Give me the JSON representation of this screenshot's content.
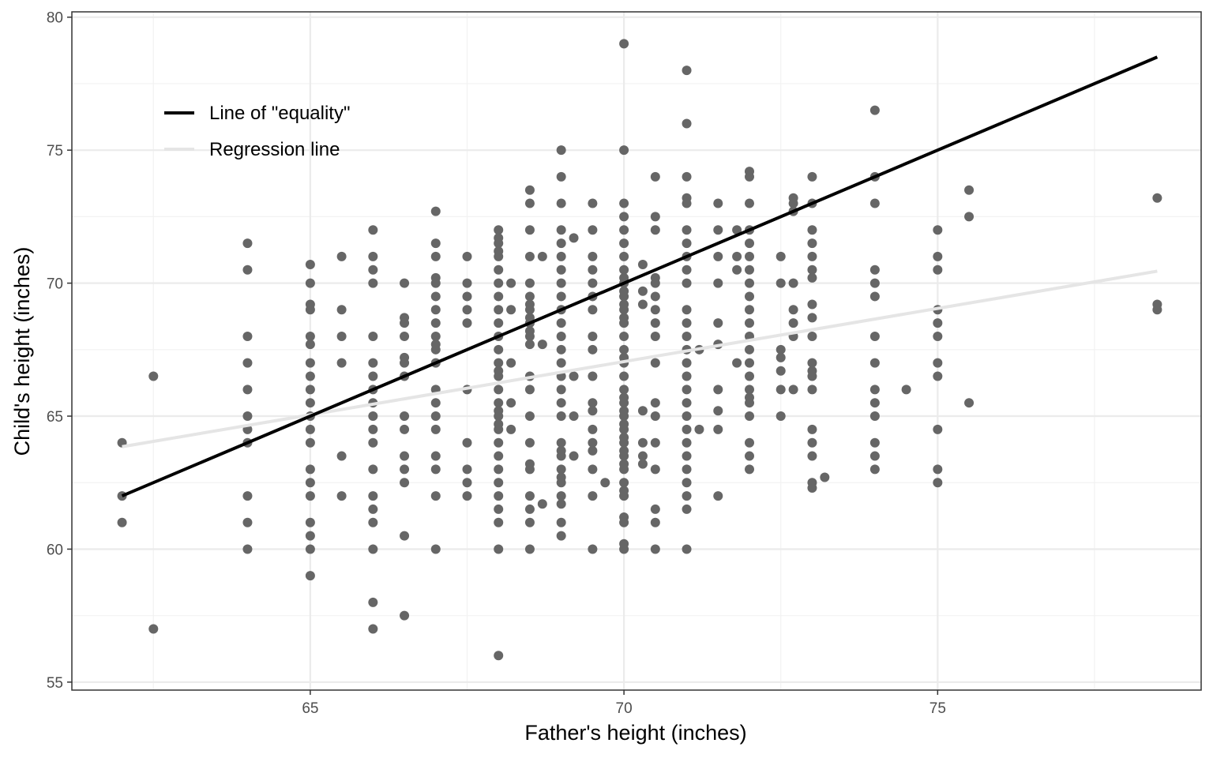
{
  "chart_data": {
    "type": "scatter",
    "title": "",
    "xlabel": "Father's height (inches)",
    "ylabel": "Child's height (inches)",
    "xlim": [
      61.2,
      79.2
    ],
    "ylim": [
      54.7,
      80.2
    ],
    "x_ticks": [
      65,
      70,
      75
    ],
    "x_tick_labels": [
      "65",
      "70",
      "75"
    ],
    "y_ticks": [
      55,
      60,
      65,
      70,
      75,
      80
    ],
    "y_tick_labels": [
      "55",
      "60",
      "65",
      "70",
      "75",
      "80"
    ],
    "grid": true,
    "legend_position": "top-left",
    "point_color": "#666666",
    "series": [
      {
        "name": "Line of \"equality\"",
        "type": "line",
        "color": "#000000",
        "points": [
          [
            62.0,
            62.0
          ],
          [
            78.5,
            78.5
          ]
        ]
      },
      {
        "name": "Regression line",
        "type": "line",
        "color": "#e5e5e5",
        "points": [
          [
            62.0,
            63.85
          ],
          [
            78.5,
            70.45
          ]
        ]
      }
    ],
    "points": [
      [
        62,
        64
      ],
      [
        62,
        62
      ],
      [
        62,
        61
      ],
      [
        62.5,
        66.5
      ],
      [
        62.5,
        57
      ],
      [
        64,
        71.5
      ],
      [
        64,
        70.5
      ],
      [
        64,
        68
      ],
      [
        64,
        67
      ],
      [
        64,
        66
      ],
      [
        64,
        65
      ],
      [
        64,
        64.5
      ],
      [
        64,
        64
      ],
      [
        64,
        62
      ],
      [
        64,
        61
      ],
      [
        64,
        60
      ],
      [
        65,
        70.7
      ],
      [
        65,
        70
      ],
      [
        65,
        69.2
      ],
      [
        65,
        69
      ],
      [
        65,
        68
      ],
      [
        65,
        67.7
      ],
      [
        65,
        67
      ],
      [
        65,
        66.5
      ],
      [
        65,
        66
      ],
      [
        65,
        65.5
      ],
      [
        65,
        65
      ],
      [
        65,
        64.5
      ],
      [
        65,
        64
      ],
      [
        65,
        63
      ],
      [
        65,
        62.5
      ],
      [
        65,
        62
      ],
      [
        65,
        61
      ],
      [
        65,
        60.5
      ],
      [
        65,
        60
      ],
      [
        65,
        59
      ],
      [
        65.5,
        71
      ],
      [
        65.5,
        69
      ],
      [
        65.5,
        68
      ],
      [
        65.5,
        67
      ],
      [
        65.5,
        63.5
      ],
      [
        65.5,
        62
      ],
      [
        66,
        72
      ],
      [
        66,
        71
      ],
      [
        66,
        70.5
      ],
      [
        66,
        70
      ],
      [
        66,
        68
      ],
      [
        66,
        67
      ],
      [
        66,
        66.5
      ],
      [
        66,
        66
      ],
      [
        66,
        65.5
      ],
      [
        66,
        65
      ],
      [
        66,
        64.5
      ],
      [
        66,
        64
      ],
      [
        66,
        63
      ],
      [
        66,
        62
      ],
      [
        66,
        61.5
      ],
      [
        66,
        61
      ],
      [
        66,
        60
      ],
      [
        66,
        58
      ],
      [
        66,
        57
      ],
      [
        66.5,
        70
      ],
      [
        66.5,
        68.7
      ],
      [
        66.5,
        68.5
      ],
      [
        66.5,
        68
      ],
      [
        66.5,
        67.2
      ],
      [
        66.5,
        67
      ],
      [
        66.5,
        66.5
      ],
      [
        66.5,
        65
      ],
      [
        66.5,
        64.5
      ],
      [
        66.5,
        63.5
      ],
      [
        66.5,
        63
      ],
      [
        66.5,
        62.5
      ],
      [
        66.5,
        60.5
      ],
      [
        66.5,
        57.5
      ],
      [
        67,
        72.7
      ],
      [
        67,
        71.5
      ],
      [
        67,
        71
      ],
      [
        67,
        70.2
      ],
      [
        67,
        70
      ],
      [
        67,
        69.5
      ],
      [
        67,
        69
      ],
      [
        67,
        68.5
      ],
      [
        67,
        68
      ],
      [
        67,
        67.7
      ],
      [
        67,
        67.5
      ],
      [
        67,
        67
      ],
      [
        67,
        66
      ],
      [
        67,
        65.5
      ],
      [
        67,
        65
      ],
      [
        67,
        64.5
      ],
      [
        67,
        63.5
      ],
      [
        67,
        63
      ],
      [
        67,
        62
      ],
      [
        67,
        60
      ],
      [
        67.5,
        71
      ],
      [
        67.5,
        70
      ],
      [
        67.5,
        69.5
      ],
      [
        67.5,
        69
      ],
      [
        67.5,
        68.5
      ],
      [
        67.5,
        66
      ],
      [
        67.5,
        64
      ],
      [
        67.5,
        63
      ],
      [
        67.5,
        62.5
      ],
      [
        67.5,
        62
      ],
      [
        68,
        72
      ],
      [
        68,
        71.7
      ],
      [
        68,
        71.5
      ],
      [
        68,
        71.2
      ],
      [
        68,
        71
      ],
      [
        68,
        70.5
      ],
      [
        68,
        70
      ],
      [
        68,
        69.5
      ],
      [
        68,
        69
      ],
      [
        68,
        68.5
      ],
      [
        68,
        68
      ],
      [
        68,
        67.5
      ],
      [
        68,
        67
      ],
      [
        68,
        66.7
      ],
      [
        68,
        66.5
      ],
      [
        68,
        66
      ],
      [
        68,
        65.5
      ],
      [
        68,
        65.2
      ],
      [
        68,
        65
      ],
      [
        68,
        64.7
      ],
      [
        68,
        64.5
      ],
      [
        68,
        64
      ],
      [
        68,
        63.5
      ],
      [
        68,
        63
      ],
      [
        68,
        62.5
      ],
      [
        68,
        62
      ],
      [
        68,
        61.5
      ],
      [
        68,
        61
      ],
      [
        68,
        60
      ],
      [
        68,
        56
      ],
      [
        68.2,
        70
      ],
      [
        68.2,
        69
      ],
      [
        68.2,
        67
      ],
      [
        68.2,
        65.5
      ],
      [
        68.2,
        64.5
      ],
      [
        68.5,
        73.5
      ],
      [
        68.5,
        73
      ],
      [
        68.5,
        72
      ],
      [
        68.5,
        71
      ],
      [
        68.5,
        70
      ],
      [
        68.5,
        69.5
      ],
      [
        68.5,
        69.2
      ],
      [
        68.5,
        69
      ],
      [
        68.5,
        68.7
      ],
      [
        68.5,
        68.5
      ],
      [
        68.5,
        68.2
      ],
      [
        68.5,
        68
      ],
      [
        68.5,
        67.7
      ],
      [
        68.5,
        66.5
      ],
      [
        68.5,
        66
      ],
      [
        68.5,
        65
      ],
      [
        68.5,
        64
      ],
      [
        68.5,
        63.2
      ],
      [
        68.5,
        63
      ],
      [
        68.5,
        62
      ],
      [
        68.5,
        61.5
      ],
      [
        68.5,
        61
      ],
      [
        68.5,
        60
      ],
      [
        68.7,
        71
      ],
      [
        68.7,
        67.7
      ],
      [
        68.7,
        61.7
      ],
      [
        69,
        75
      ],
      [
        69,
        74
      ],
      [
        69,
        73
      ],
      [
        69,
        72
      ],
      [
        69,
        71.5
      ],
      [
        69,
        71
      ],
      [
        69,
        70.5
      ],
      [
        69,
        70
      ],
      [
        69,
        69.5
      ],
      [
        69,
        69
      ],
      [
        69,
        68.5
      ],
      [
        69,
        68
      ],
      [
        69,
        67.5
      ],
      [
        69,
        67
      ],
      [
        69,
        66.5
      ],
      [
        69,
        66
      ],
      [
        69,
        65.5
      ],
      [
        69,
        65
      ],
      [
        69,
        64
      ],
      [
        69,
        63.7
      ],
      [
        69,
        63.5
      ],
      [
        69,
        63
      ],
      [
        69,
        62.7
      ],
      [
        69,
        62.5
      ],
      [
        69,
        62
      ],
      [
        69,
        61.7
      ],
      [
        69,
        61
      ],
      [
        69,
        60.5
      ],
      [
        69.2,
        71.7
      ],
      [
        69.2,
        66.5
      ],
      [
        69.2,
        65
      ],
      [
        69.2,
        63.5
      ],
      [
        69.5,
        73
      ],
      [
        69.5,
        72
      ],
      [
        69.5,
        71
      ],
      [
        69.5,
        70.5
      ],
      [
        69.5,
        70
      ],
      [
        69.5,
        69.5
      ],
      [
        69.5,
        69
      ],
      [
        69.5,
        68
      ],
      [
        69.5,
        67.5
      ],
      [
        69.5,
        66.5
      ],
      [
        69.5,
        65.5
      ],
      [
        69.5,
        65.2
      ],
      [
        69.5,
        64.5
      ],
      [
        69.5,
        64
      ],
      [
        69.5,
        63.7
      ],
      [
        69.5,
        63
      ],
      [
        69.5,
        62
      ],
      [
        69.5,
        60
      ],
      [
        69.7,
        62.5
      ],
      [
        70,
        79
      ],
      [
        70,
        75
      ],
      [
        70,
        73
      ],
      [
        70,
        72.5
      ],
      [
        70,
        72
      ],
      [
        70,
        71.5
      ],
      [
        70,
        71
      ],
      [
        70,
        70.5
      ],
      [
        70,
        70.2
      ],
      [
        70,
        70
      ],
      [
        70,
        69.7
      ],
      [
        70,
        69.5
      ],
      [
        70,
        69.2
      ],
      [
        70,
        69
      ],
      [
        70,
        68.7
      ],
      [
        70,
        68.5
      ],
      [
        70,
        68
      ],
      [
        70,
        67.5
      ],
      [
        70,
        67.2
      ],
      [
        70,
        67
      ],
      [
        70,
        66.5
      ],
      [
        70,
        66
      ],
      [
        70,
        65.7
      ],
      [
        70,
        65.5
      ],
      [
        70,
        65.2
      ],
      [
        70,
        65
      ],
      [
        70,
        64.7
      ],
      [
        70,
        64.5
      ],
      [
        70,
        64.2
      ],
      [
        70,
        64
      ],
      [
        70,
        63.7
      ],
      [
        70,
        63.5
      ],
      [
        70,
        63.2
      ],
      [
        70,
        63
      ],
      [
        70,
        62.5
      ],
      [
        70,
        62.2
      ],
      [
        70,
        62
      ],
      [
        70,
        61.2
      ],
      [
        70,
        61
      ],
      [
        70,
        60.2
      ],
      [
        70,
        60
      ],
      [
        70.3,
        70.7
      ],
      [
        70.3,
        69.7
      ],
      [
        70.3,
        69.2
      ],
      [
        70.3,
        65.2
      ],
      [
        70.3,
        64
      ],
      [
        70.3,
        63.5
      ],
      [
        70.3,
        63.2
      ],
      [
        70.5,
        74
      ],
      [
        70.5,
        72.5
      ],
      [
        70.5,
        72
      ],
      [
        70.5,
        70.2
      ],
      [
        70.5,
        70
      ],
      [
        70.5,
        69.5
      ],
      [
        70.5,
        69
      ],
      [
        70.5,
        68.5
      ],
      [
        70.5,
        68
      ],
      [
        70.5,
        67
      ],
      [
        70.5,
        65.5
      ],
      [
        70.5,
        65
      ],
      [
        70.5,
        64
      ],
      [
        70.5,
        63
      ],
      [
        70.5,
        61.5
      ],
      [
        70.5,
        61
      ],
      [
        70.5,
        60
      ],
      [
        71,
        78
      ],
      [
        71,
        76
      ],
      [
        71,
        74
      ],
      [
        71,
        73.2
      ],
      [
        71,
        73
      ],
      [
        71,
        72
      ],
      [
        71,
        71.5
      ],
      [
        71,
        71
      ],
      [
        71,
        70.5
      ],
      [
        71,
        70
      ],
      [
        71,
        69
      ],
      [
        71,
        68.5
      ],
      [
        71,
        68
      ],
      [
        71,
        67.5
      ],
      [
        71,
        67
      ],
      [
        71,
        66.5
      ],
      [
        71,
        66
      ],
      [
        71,
        65.5
      ],
      [
        71,
        65
      ],
      [
        71,
        64.5
      ],
      [
        71,
        64
      ],
      [
        71,
        63.5
      ],
      [
        71,
        63
      ],
      [
        71,
        62.5
      ],
      [
        71,
        62
      ],
      [
        71,
        61.5
      ],
      [
        71,
        60
      ],
      [
        71.2,
        67.5
      ],
      [
        71.2,
        64.5
      ],
      [
        71.5,
        73
      ],
      [
        71.5,
        72
      ],
      [
        71.5,
        71
      ],
      [
        71.5,
        70
      ],
      [
        71.5,
        68.5
      ],
      [
        71.5,
        67.7
      ],
      [
        71.5,
        66
      ],
      [
        71.5,
        65.2
      ],
      [
        71.5,
        64.5
      ],
      [
        71.5,
        62
      ],
      [
        71.8,
        72
      ],
      [
        71.8,
        71
      ],
      [
        71.8,
        70.5
      ],
      [
        71.8,
        67
      ],
      [
        72,
        74.2
      ],
      [
        72,
        74
      ],
      [
        72,
        73
      ],
      [
        72,
        72
      ],
      [
        72,
        71.5
      ],
      [
        72,
        71
      ],
      [
        72,
        70.5
      ],
      [
        72,
        70
      ],
      [
        72,
        69.5
      ],
      [
        72,
        69
      ],
      [
        72,
        68.5
      ],
      [
        72,
        68
      ],
      [
        72,
        67.5
      ],
      [
        72,
        67
      ],
      [
        72,
        66.5
      ],
      [
        72,
        66
      ],
      [
        72,
        65.7
      ],
      [
        72,
        65.5
      ],
      [
        72,
        65
      ],
      [
        72,
        64
      ],
      [
        72,
        63.5
      ],
      [
        72,
        63
      ],
      [
        72.5,
        71
      ],
      [
        72.5,
        70
      ],
      [
        72.5,
        67.5
      ],
      [
        72.5,
        67.2
      ],
      [
        72.5,
        66.7
      ],
      [
        72.5,
        66
      ],
      [
        72.5,
        65
      ],
      [
        72.7,
        73.2
      ],
      [
        72.7,
        73
      ],
      [
        72.7,
        72.7
      ],
      [
        72.7,
        70
      ],
      [
        72.7,
        69
      ],
      [
        72.7,
        68.5
      ],
      [
        72.7,
        68
      ],
      [
        72.7,
        66
      ],
      [
        73,
        74
      ],
      [
        73,
        73
      ],
      [
        73,
        72
      ],
      [
        73,
        71.5
      ],
      [
        73,
        71
      ],
      [
        73,
        70.5
      ],
      [
        73,
        70.2
      ],
      [
        73,
        69.2
      ],
      [
        73,
        68.7
      ],
      [
        73,
        68
      ],
      [
        73,
        67
      ],
      [
        73,
        66.7
      ],
      [
        73,
        66.5
      ],
      [
        73,
        66
      ],
      [
        73,
        64.5
      ],
      [
        73,
        64
      ],
      [
        73,
        63.5
      ],
      [
        73,
        62.5
      ],
      [
        73,
        62.3
      ],
      [
        73.2,
        62.7
      ],
      [
        74,
        76.5
      ],
      [
        74,
        74
      ],
      [
        74,
        73
      ],
      [
        74,
        70.5
      ],
      [
        74,
        70
      ],
      [
        74,
        69.5
      ],
      [
        74,
        68
      ],
      [
        74,
        67
      ],
      [
        74,
        66
      ],
      [
        74,
        65.5
      ],
      [
        74,
        65
      ],
      [
        74,
        64
      ],
      [
        74,
        63.5
      ],
      [
        74,
        63
      ],
      [
        74.5,
        66
      ],
      [
        75,
        72
      ],
      [
        75,
        71
      ],
      [
        75,
        70.5
      ],
      [
        75,
        69
      ],
      [
        75,
        68.5
      ],
      [
        75,
        68
      ],
      [
        75,
        67
      ],
      [
        75,
        66.5
      ],
      [
        75,
        64.5
      ],
      [
        75,
        63
      ],
      [
        75,
        62.5
      ],
      [
        75.5,
        73.5
      ],
      [
        75.5,
        72.5
      ],
      [
        75.5,
        65.5
      ],
      [
        78.5,
        73.2
      ],
      [
        78.5,
        69.2
      ],
      [
        78.5,
        69
      ]
    ]
  }
}
